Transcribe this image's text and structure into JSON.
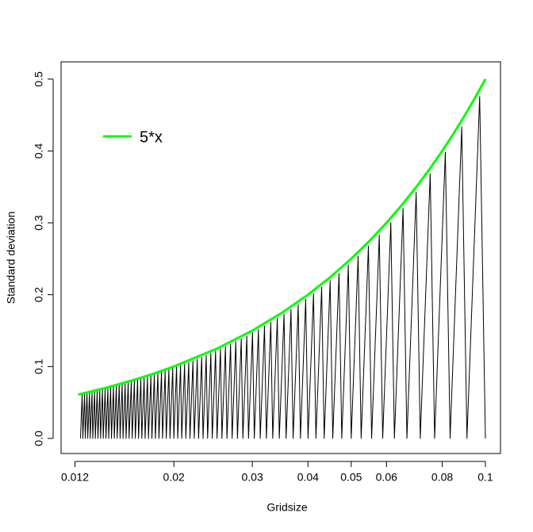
{
  "chart_data": {
    "type": "line",
    "xlabel": "Gridsize",
    "ylabel": "Standard deviation",
    "xscale": "log",
    "xlim": [
      0.01117,
      0.1081
    ],
    "ylim": [
      -0.021,
      0.524
    ],
    "xticks": [
      0.012,
      0.02,
      0.03,
      0.04,
      0.05,
      0.06,
      0.08,
      0.1
    ],
    "yticks": [
      {
        "value": 0,
        "label": "0.0"
      },
      0.1,
      0.2,
      0.3,
      0.4,
      0.5
    ],
    "legend": "top-left",
    "series": [
      {
        "color": "#000000",
        "x": [
          0.012346,
          0.012453,
          0.0125,
          0.01261,
          0.012658,
          0.012771,
          0.012821,
          0.012937,
          0.012987,
          0.013106,
          0.013158,
          0.01328,
          0.013333,
          0.013459,
          0.013514,
          0.013643,
          0.013699,
          0.013831,
          0.013889,
          0.014025,
          0.014085,
          0.014225,
          0.014286,
          0.01443,
          0.014493,
          0.014641,
          0.014706,
          0.014859,
          0.014925,
          0.015083,
          0.015152,
          0.015314,
          0.015385,
          0.015552,
          0.015625,
          0.015798,
          0.015873,
          0.016051,
          0.016129,
          0.016313,
          0.016393,
          0.016584,
          0.016667,
          0.016863,
          0.016949,
          0.017153,
          0.017241,
          0.017452,
          0.017544,
          0.017762,
          0.017857,
          0.018083,
          0.018182,
          0.018416,
          0.018519,
          0.018762,
          0.018868,
          0.01912,
          0.019231,
          0.019493,
          0.019608,
          0.019881,
          0.02,
          0.020284,
          0.020408,
          0.020704,
          0.020833,
          0.021142,
          0.021277,
          0.021598,
          0.021739,
          0.022075,
          0.022222,
          0.022573,
          0.022727,
          0.023095,
          0.023256,
          0.023641,
          0.02381,
          0.024213,
          0.02439,
          0.024814,
          0.025,
          0.025445,
          0.025641,
          0.02611,
          0.026316,
          0.02681,
          0.027027,
          0.027548,
          0.027778,
          0.028329,
          0.028571,
          0.029155,
          0.029412,
          0.03003,
          0.030303,
          0.03096,
          0.03125,
          0.031949,
          0.032258,
          0.033003,
          0.033333,
          0.03413,
          0.034483,
          0.035336,
          0.035714,
          0.03663,
          0.037037,
          0.038023,
          0.038462,
          0.039526,
          0.04,
          0.041152,
          0.041667,
          0.042918,
          0.043478,
          0.044843,
          0.045455,
          0.046948,
          0.047619,
          0.049261,
          0.05,
          0.051813,
          0.052632,
          0.054645,
          0.055556,
          0.057803,
          0.058824,
          0.06135,
          0.0625,
          0.065359,
          0.066667,
          0.06993,
          0.071429,
          0.075188,
          0.076923,
          0.081301,
          0.083333,
          0.088496,
          0.090909,
          0.097087,
          0.1
        ],
        "values": [
          0,
          0.06102,
          0,
          0.06179,
          0,
          0.06258,
          0,
          0.06339,
          0,
          0.06422,
          0,
          0.06507,
          0,
          0.06595,
          0,
          0.06685,
          0,
          0.06777,
          0,
          0.06872,
          0,
          0.0697,
          0,
          0.07071,
          0,
          0.07174,
          0,
          0.07281,
          0,
          0.07391,
          0,
          0.07504,
          0,
          0.0762,
          0,
          0.07741,
          0,
          0.07865,
          0,
          0.07993,
          0,
          0.08126,
          0,
          0.08263,
          0,
          0.08405,
          0,
          0.08551,
          0,
          0.08703,
          0,
          0.08861,
          0,
          0.09024,
          0,
          0.09193,
          0,
          0.09369,
          0,
          0.09552,
          0,
          0.09742,
          0,
          0.09939,
          0,
          0.10145,
          0,
          0.10359,
          0,
          0.10583,
          0,
          0.10817,
          0,
          0.11061,
          0,
          0.11316,
          0,
          0.11584,
          0,
          0.11864,
          0,
          0.12159,
          0,
          0.12468,
          0,
          0.12794,
          0,
          0.13137,
          0,
          0.13499,
          0,
          0.13881,
          0,
          0.14286,
          0,
          0.14715,
          0,
          0.1517,
          0,
          0.15655,
          0,
          0.16172,
          0,
          0.16724,
          0,
          0.17314,
          0,
          0.17949,
          0,
          0.18631,
          0,
          0.19368,
          0,
          0.20165,
          0,
          0.2103,
          0,
          0.21973,
          0,
          0.23005,
          0,
          0.24138,
          0,
          0.25389,
          0,
          0.26776,
          0,
          0.28324,
          0,
          0.30061,
          0,
          0.32026,
          0,
          0.34266,
          0,
          0.36842,
          0,
          0.39837,
          0,
          0.43363,
          0,
          0.47573,
          0
        ]
      },
      {
        "name": "5*x",
        "color": "#00ff00",
        "x": [
          0.0122,
          0.014,
          0.016,
          0.018,
          0.02,
          0.025,
          0.03,
          0.035,
          0.04,
          0.045,
          0.05,
          0.055,
          0.06,
          0.065,
          0.07,
          0.075,
          0.08,
          0.085,
          0.09,
          0.095,
          0.1
        ],
        "values": [
          0.061,
          0.07,
          0.08,
          0.09,
          0.1,
          0.125,
          0.15,
          0.175,
          0.2,
          0.225,
          0.25,
          0.275,
          0.3,
          0.325,
          0.35,
          0.375,
          0.4,
          0.425,
          0.45,
          0.475,
          0.5
        ]
      }
    ]
  }
}
